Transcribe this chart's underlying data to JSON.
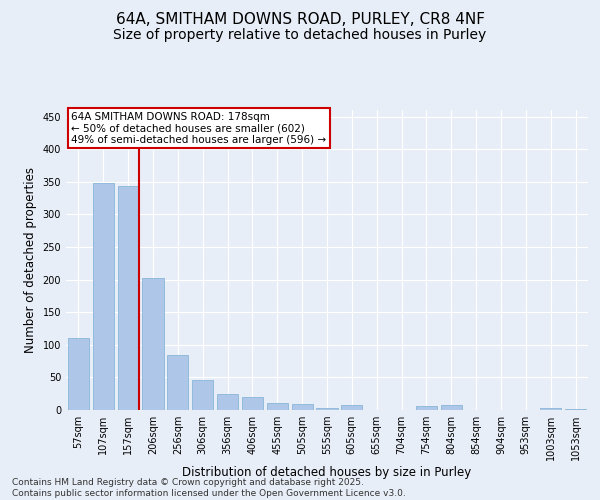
{
  "title": "64A, SMITHAM DOWNS ROAD, PURLEY, CR8 4NF",
  "subtitle": "Size of property relative to detached houses in Purley",
  "xlabel": "Distribution of detached houses by size in Purley",
  "ylabel": "Number of detached properties",
  "categories": [
    "57sqm",
    "107sqm",
    "157sqm",
    "206sqm",
    "256sqm",
    "306sqm",
    "356sqm",
    "406sqm",
    "455sqm",
    "505sqm",
    "555sqm",
    "605sqm",
    "655sqm",
    "704sqm",
    "754sqm",
    "804sqm",
    "854sqm",
    "904sqm",
    "953sqm",
    "1003sqm",
    "1053sqm"
  ],
  "values": [
    110,
    348,
    343,
    203,
    85,
    46,
    25,
    20,
    10,
    9,
    3,
    7,
    0,
    0,
    6,
    8,
    0,
    0,
    0,
    3,
    2
  ],
  "bar_color": "#aec6e8",
  "bar_edge_color": "#7aafd4",
  "background_color": "#e8eef7",
  "grid_color": "#ffffff",
  "vline_x_idx": 2,
  "vline_color": "#cc0000",
  "annotation_text": "64A SMITHAM DOWNS ROAD: 178sqm\n← 50% of detached houses are smaller (602)\n49% of semi-detached houses are larger (596) →",
  "annotation_box_color": "#ffffff",
  "annotation_box_edge_color": "#cc0000",
  "footer_text": "Contains HM Land Registry data © Crown copyright and database right 2025.\nContains public sector information licensed under the Open Government Licence v3.0.",
  "ylim": [
    0,
    460
  ],
  "yticks": [
    0,
    50,
    100,
    150,
    200,
    250,
    300,
    350,
    400,
    450
  ],
  "title_fontsize": 11,
  "subtitle_fontsize": 10,
  "label_fontsize": 8.5,
  "tick_fontsize": 7,
  "annotation_fontsize": 7.5,
  "footer_fontsize": 6.5
}
